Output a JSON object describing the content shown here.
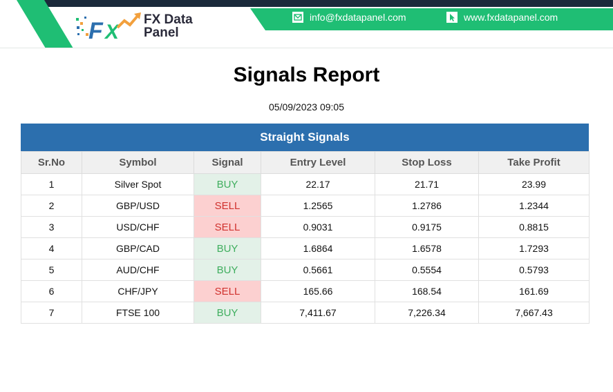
{
  "header": {
    "brand_line1": "FX Data",
    "brand_line2": "Panel",
    "email": "info@fxdatapanel.com",
    "website": "www.fxdatapanel.com",
    "colors": {
      "green": "#1fbe74",
      "dark": "#1b2a3b",
      "blue": "#2c6fae"
    },
    "icons": {
      "email": "envelope-icon",
      "website": "cursor-icon"
    }
  },
  "report": {
    "title": "Signals Report",
    "datetime": "05/09/2023 09:05"
  },
  "table": {
    "banner": "Straight Signals",
    "columns": [
      "Sr.No",
      "Symbol",
      "Signal",
      "Entry Level",
      "Stop Loss",
      "Take Profit"
    ],
    "rows": [
      {
        "sr": "1",
        "symbol": "Silver Spot",
        "signal": "BUY",
        "entry": "22.17",
        "stop": "21.71",
        "take": "23.99"
      },
      {
        "sr": "2",
        "symbol": "GBP/USD",
        "signal": "SELL",
        "entry": "1.2565",
        "stop": "1.2786",
        "take": "1.2344"
      },
      {
        "sr": "3",
        "symbol": "USD/CHF",
        "signal": "SELL",
        "entry": "0.9031",
        "stop": "0.9175",
        "take": "0.8815"
      },
      {
        "sr": "4",
        "symbol": "GBP/CAD",
        "signal": "BUY",
        "entry": "1.6864",
        "stop": "1.6578",
        "take": "1.7293"
      },
      {
        "sr": "5",
        "symbol": "AUD/CHF",
        "signal": "BUY",
        "entry": "0.5661",
        "stop": "0.5554",
        "take": "0.5793"
      },
      {
        "sr": "6",
        "symbol": "CHF/JPY",
        "signal": "SELL",
        "entry": "165.66",
        "stop": "168.54",
        "take": "161.69"
      },
      {
        "sr": "7",
        "symbol": "FTSE 100",
        "signal": "BUY",
        "entry": "7,411.67",
        "stop": "7,226.34",
        "take": "7,667.43"
      }
    ]
  }
}
